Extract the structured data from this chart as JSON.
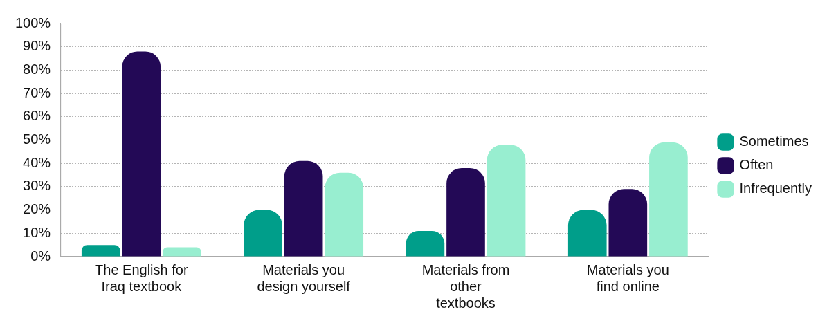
{
  "chart_data": {
    "type": "bar",
    "categories": [
      "The English for\nIraq textbook",
      "Materials you\ndesign yourself",
      "Materials from\nother\ntextbooks",
      "Materials you\nfind online"
    ],
    "series": [
      {
        "name": "Sometimes",
        "color": "#009e8a",
        "values": [
          5,
          20,
          11,
          20
        ]
      },
      {
        "name": "Often",
        "color": "#230956",
        "values": [
          88,
          41,
          38,
          29
        ]
      },
      {
        "name": "Infrequently",
        "color": "#98eed0",
        "values": [
          4,
          36,
          48,
          49
        ]
      }
    ],
    "ylim": [
      0,
      100
    ],
    "yticks": [
      {
        "value": 0,
        "label": "0%"
      },
      {
        "value": 10,
        "label": "10%"
      },
      {
        "value": 20,
        "label": "20%"
      },
      {
        "value": 30,
        "label": "30%"
      },
      {
        "value": 40,
        "label": "40%"
      },
      {
        "value": 50,
        "label": "50%"
      },
      {
        "value": 60,
        "label": "60%"
      },
      {
        "value": 70,
        "label": "70%"
      },
      {
        "value": 80,
        "label": "80%"
      },
      {
        "value": 90,
        "label": "90%"
      },
      {
        "value": 100,
        "label": "100%"
      }
    ],
    "grid": "y",
    "legend": "right"
  }
}
